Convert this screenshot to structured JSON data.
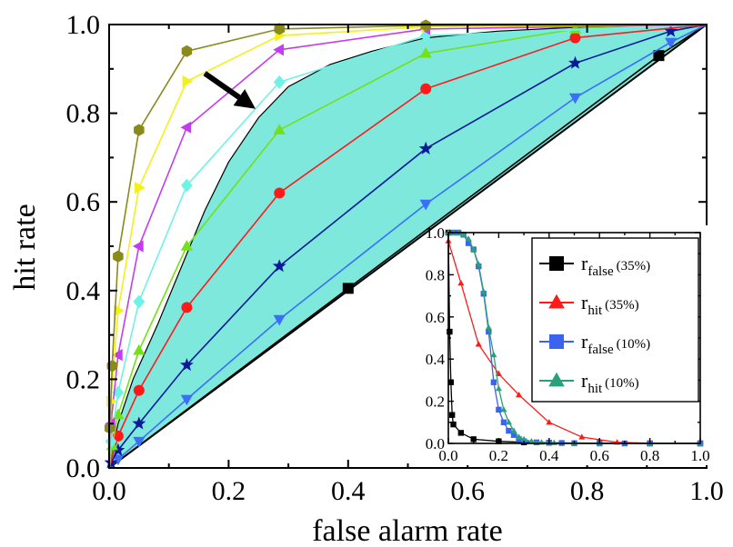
{
  "chart_data": [
    {
      "type": "line",
      "xlabel": "false alarm rate",
      "ylabel": "hit rate",
      "xlim": [
        0,
        1
      ],
      "ylim": [
        0,
        1
      ],
      "xticks": [
        "0.0",
        "0.2",
        "0.4",
        "0.6",
        "0.8",
        "1.0"
      ],
      "yticks": [
        "0.0",
        "0.2",
        "0.4",
        "0.6",
        "0.8",
        "1.0"
      ],
      "shaded_region": {
        "color": "#7fe8dc",
        "upper": [
          [
            0,
            0
          ],
          [
            0.005,
            0.04
          ],
          [
            0.015,
            0.1
          ],
          [
            0.04,
            0.2
          ],
          [
            0.08,
            0.32
          ],
          [
            0.12,
            0.45
          ],
          [
            0.16,
            0.58
          ],
          [
            0.2,
            0.69
          ],
          [
            0.25,
            0.79
          ],
          [
            0.3,
            0.86
          ],
          [
            0.37,
            0.91
          ],
          [
            0.44,
            0.94
          ],
          [
            0.53,
            0.97
          ],
          [
            0.65,
            0.985
          ],
          [
            0.8,
            0.995
          ],
          [
            1,
            1
          ]
        ],
        "lower": [
          [
            0,
            0
          ],
          [
            1,
            1
          ]
        ]
      },
      "arrow": {
        "from": [
          0.16,
          0.89
        ],
        "to": [
          0.245,
          0.81
        ],
        "color": "#000000"
      },
      "series": [
        {
          "name": "black",
          "color": "#000000",
          "marker": "square",
          "x": [
            0,
            0.4,
            0.92,
            1.0
          ],
          "y": [
            0,
            0.405,
            0.93,
            1.0
          ]
        },
        {
          "name": "blue-down",
          "color": "#3a6ff7",
          "marker": "triangle-down",
          "x": [
            0,
            0.015,
            0.05,
            0.13,
            0.285,
            0.53,
            0.78,
            0.94,
            1.0
          ],
          "y": [
            0,
            0.02,
            0.06,
            0.155,
            0.335,
            0.595,
            0.835,
            0.96,
            1.0
          ]
        },
        {
          "name": "navy-star",
          "color": "#0b1a9a",
          "marker": "star",
          "x": [
            0,
            0.003,
            0.015,
            0.05,
            0.13,
            0.285,
            0.53,
            0.78,
            0.94,
            1.0
          ],
          "y": [
            0,
            0.012,
            0.04,
            0.1,
            0.232,
            0.455,
            0.72,
            0.913,
            0.985,
            1.0
          ]
        },
        {
          "name": "red-circle",
          "color": "#ff1a1a",
          "marker": "circle",
          "x": [
            0,
            0.015,
            0.05,
            0.13,
            0.285,
            0.53,
            0.78,
            1.0
          ],
          "y": [
            0,
            0.072,
            0.175,
            0.362,
            0.62,
            0.855,
            0.97,
            1.0
          ]
        },
        {
          "name": "green-up",
          "color": "#72e01a",
          "marker": "triangle-up",
          "x": [
            0,
            0.005,
            0.015,
            0.05,
            0.13,
            0.285,
            0.53,
            0.78,
            1.0
          ],
          "y": [
            0,
            0.05,
            0.12,
            0.265,
            0.5,
            0.762,
            0.935,
            0.99,
            1.0
          ]
        },
        {
          "name": "cyan-diamond",
          "color": "#6ff2e6",
          "marker": "diamond",
          "x": [
            0,
            0.003,
            0.015,
            0.05,
            0.13,
            0.285,
            0.53,
            1.0
          ],
          "y": [
            0,
            0.06,
            0.17,
            0.375,
            0.637,
            0.87,
            0.975,
            1.0
          ]
        },
        {
          "name": "magenta-left",
          "color": "#c53cf0",
          "marker": "triangle-left",
          "x": [
            0,
            0.003,
            0.015,
            0.05,
            0.13,
            0.285,
            0.53,
            1.0
          ],
          "y": [
            0,
            0.1,
            0.255,
            0.5,
            0.768,
            0.943,
            0.99,
            1.0
          ]
        },
        {
          "name": "yellow-right",
          "color": "#f4f01a",
          "marker": "triangle-right",
          "x": [
            0,
            0.003,
            0.015,
            0.05,
            0.13,
            0.285,
            0.53,
            1.0
          ],
          "y": [
            0,
            0.15,
            0.355,
            0.632,
            0.872,
            0.975,
            0.995,
            1.0
          ]
        },
        {
          "name": "olive-hexagon",
          "color": "#8a8a1a",
          "marker": "hexagon",
          "x": [
            0,
            0.001,
            0.005,
            0.015,
            0.05,
            0.13,
            0.285,
            0.53,
            1.0
          ],
          "y": [
            0,
            0.09,
            0.23,
            0.477,
            0.762,
            0.94,
            0.99,
            0.998,
            1.0
          ]
        }
      ]
    },
    {
      "type": "line",
      "inset": true,
      "xlim": [
        0,
        1
      ],
      "ylim": [
        0,
        1
      ],
      "xticks": [
        "0.0",
        "0.2",
        "0.4",
        "0.6",
        "0.8",
        "1.0"
      ],
      "yticks": [
        "0.0",
        "0.2",
        "0.4",
        "0.6",
        "0.8",
        "1.0"
      ],
      "legend": {
        "location": "top-right"
      },
      "series": [
        {
          "name": "r",
          "subscript": "false",
          "percent": "(35%)",
          "color": "#000000",
          "marker": "square",
          "x": [
            0,
            0.005,
            0.01,
            0.015,
            0.02,
            0.05,
            0.1,
            0.2,
            0.3,
            0.4,
            0.6,
            0.8,
            1.0
          ],
          "y": [
            1.0,
            0.53,
            0.29,
            0.135,
            0.09,
            0.05,
            0.02,
            0.01,
            0.005,
            0.003,
            0.001,
            0.0,
            0.0
          ]
        },
        {
          "name": "r",
          "subscript": "hit",
          "percent": "(35%)",
          "color": "#ff1a1a",
          "marker": "triangle-up",
          "x": [
            0,
            0.05,
            0.12,
            0.2,
            0.28,
            0.4,
            0.53,
            0.67,
            0.8,
            1.0
          ],
          "y": [
            0.96,
            0.76,
            0.47,
            0.33,
            0.23,
            0.1,
            0.03,
            0.005,
            0.001,
            0.0
          ]
        },
        {
          "name": "r",
          "subscript": "false",
          "percent": "(10%)",
          "color": "#3a63f0",
          "marker": "square",
          "x": [
            0.02,
            0.04,
            0.06,
            0.08,
            0.1,
            0.12,
            0.14,
            0.16,
            0.18,
            0.2,
            0.22,
            0.24,
            0.26,
            0.28,
            0.3,
            0.35,
            0.4,
            0.45,
            0.5,
            0.6,
            0.7,
            0.8,
            1.0
          ],
          "y": [
            1.0,
            1.0,
            0.99,
            0.95,
            0.92,
            0.84,
            0.71,
            0.53,
            0.29,
            0.16,
            0.1,
            0.06,
            0.04,
            0.02,
            0.01,
            0.005,
            0.003,
            0.002,
            0.001,
            0.0,
            0.0,
            0.0,
            0.0
          ]
        },
        {
          "name": "r",
          "subscript": "hit",
          "percent": "(10%)",
          "color": "#2aa07a",
          "marker": "triangle-up",
          "x": [
            0.0,
            0.02,
            0.04,
            0.06,
            0.08,
            0.1,
            0.12,
            0.14,
            0.16,
            0.18,
            0.2,
            0.22,
            0.24,
            0.26,
            0.28,
            0.3,
            0.33,
            0.37,
            0.42,
            0.5,
            0.6,
            0.8,
            1.0
          ],
          "y": [
            1.0,
            1.0,
            1.0,
            0.99,
            0.97,
            0.92,
            0.85,
            0.72,
            0.55,
            0.42,
            0.26,
            0.16,
            0.1,
            0.06,
            0.03,
            0.02,
            0.01,
            0.005,
            0.003,
            0.001,
            0.0,
            0.0,
            0.0
          ]
        }
      ]
    }
  ]
}
